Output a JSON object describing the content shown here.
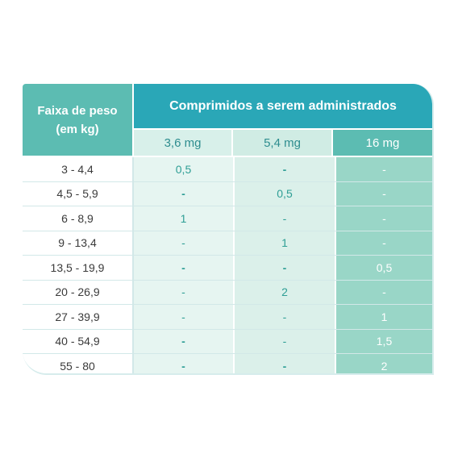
{
  "table": {
    "weight_header_line1": "Faixa de peso",
    "weight_header_line2": "(em kg)",
    "group_header": "Comprimidos a serem administrados",
    "dose_headers": [
      "3,6 mg",
      "5,4 mg",
      "16 mg"
    ],
    "rows": [
      {
        "weight": "3 - 4,4",
        "d1": "0,5",
        "d2": "-",
        "d3": "-"
      },
      {
        "weight": "4,5 - 5,9",
        "d1": "-",
        "d2": "0,5",
        "d3": "-"
      },
      {
        "weight": "6 - 8,9",
        "d1": "1",
        "d2": "-",
        "d3": "-"
      },
      {
        "weight": "9 - 13,4",
        "d1": "-",
        "d2": "1",
        "d3": "-"
      },
      {
        "weight": "13,5 - 19,9",
        "d1": "-",
        "d2": "-",
        "d3": "0,5"
      },
      {
        "weight": "20 - 26,9",
        "d1": "-",
        "d2": "2",
        "d3": "-"
      },
      {
        "weight": "27 - 39,9",
        "d1": "-",
        "d2": "-",
        "d3": "1"
      },
      {
        "weight": "40 - 54,9",
        "d1": "-",
        "d2": "-",
        "d3": "1,5"
      },
      {
        "weight": "55 - 80",
        "d1": "-",
        "d2": "-",
        "d3": "2"
      }
    ]
  },
  "colors": {
    "header_teal": "#2aa7b7",
    "header_green": "#5cbcb2",
    "dose_col3_fill": "#99d6c7"
  }
}
